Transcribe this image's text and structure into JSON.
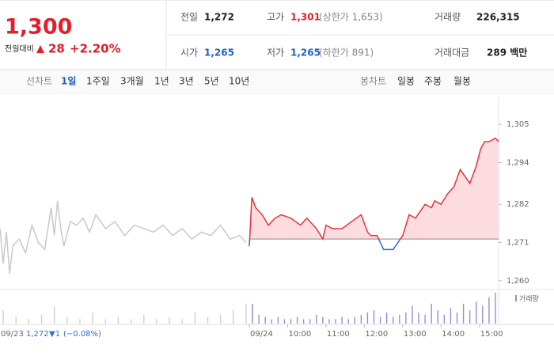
{
  "header": {
    "price": "1,300",
    "change_label": "전일대비",
    "change_arrow": "▲",
    "change": "28",
    "change_pct": "+2.20%",
    "stats": [
      {
        "label": "전일",
        "value": "1,272"
      },
      {
        "label": "고가",
        "value": "1,301",
        "note": "(상한가 1,653)"
      },
      {
        "label": "거래량",
        "value": "226,315"
      },
      {
        "label": "시가",
        "value": "1,265"
      },
      {
        "label": "저가",
        "value": "1,265",
        "note": "(하한가 891)"
      },
      {
        "label": "거래대금",
        "value": "289 백만"
      }
    ]
  },
  "tabs": {
    "line_label": "선차트",
    "line_periods": [
      "1일",
      "1주일",
      "3개월",
      "1년",
      "3년",
      "5년",
      "10년"
    ],
    "candle_label": "봉차트",
    "candle_periods": [
      "일봉",
      "주봉",
      "월봉"
    ]
  },
  "chart_data": {
    "type": "line",
    "xlim": [
      -390,
      390
    ],
    "ylim": [
      1257.7,
      1313
    ],
    "xticks": [
      {
        "value": 0,
        "label": "09/24"
      },
      {
        "value": 60,
        "label": "10:00"
      },
      {
        "value": 120,
        "label": "11:00"
      },
      {
        "value": 180,
        "label": "12:00"
      },
      {
        "value": 240,
        "label": "13:00"
      },
      {
        "value": 300,
        "label": "14:00"
      },
      {
        "value": 360,
        "label": "15:00"
      }
    ],
    "yticks": [
      {
        "value": 1305,
        "label": "1,305"
      },
      {
        "value": 1294,
        "label": "1,294"
      },
      {
        "value": 1282,
        "label": "1,282"
      },
      {
        "value": 1271,
        "label": "1,271"
      },
      {
        "value": 1260,
        "label": "1,260"
      }
    ],
    "baseline": 1272,
    "up_color": "#e8323a",
    "down_color": "#2f6fd6",
    "fill_color": "#fcdcdf",
    "series": [
      {
        "color": "#c9c9c9",
        "x": [
          -390,
          -385,
          -380,
          -375,
          -370,
          -360,
          -350,
          -340,
          -330,
          -320,
          -310,
          -305,
          -300,
          -295,
          -290,
          -280,
          -270,
          -260,
          -250,
          -240,
          -225,
          -210,
          -195,
          -180,
          -165,
          -150,
          -135,
          -120,
          -105,
          -90,
          -75,
          -60,
          -45,
          -30,
          -15,
          -5
        ],
        "values": [
          1275,
          1265,
          1274,
          1262,
          1270,
          1272,
          1268,
          1276,
          1271,
          1269,
          1281,
          1273,
          1283,
          1275,
          1270,
          1277,
          1276,
          1278,
          1274,
          1279,
          1275,
          1277,
          1273,
          1276,
          1275,
          1274,
          1276,
          1273,
          1275,
          1272,
          1274,
          1273,
          1276,
          1272,
          1273,
          1271
        ]
      },
      {
        "x": [
          0,
          4,
          10,
          20,
          30,
          40,
          50,
          65,
          80,
          90,
          105,
          115,
          120,
          130,
          145,
          160,
          175,
          185,
          190,
          200,
          210,
          225,
          240,
          250,
          260,
          275,
          285,
          290,
          300,
          310,
          320,
          330,
          345,
          355,
          362,
          368,
          375,
          385,
          390
        ],
        "values": [
          1270,
          1284,
          1281,
          1279,
          1276,
          1278,
          1279,
          1278,
          1276,
          1278,
          1275,
          1272,
          1276,
          1275,
          1275,
          1277,
          1279,
          1274,
          1273,
          1273,
          1269,
          1269,
          1273,
          1279,
          1278,
          1282,
          1281,
          1283,
          1282,
          1285,
          1287,
          1292,
          1288,
          1293,
          1298,
          1300,
          1300,
          1301,
          1300
        ]
      }
    ],
    "volume": {
      "name": "거래량",
      "series": [
        {
          "color": "#cfcfcf",
          "x": [
            -385,
            -365,
            -345,
            -325,
            -305,
            -285,
            -265,
            -245,
            -225,
            -205,
            -185,
            -165,
            -145,
            -125,
            -105,
            -85,
            -65,
            -45,
            -25,
            -5
          ],
          "values": [
            6,
            3,
            2,
            4,
            8,
            3,
            2,
            5,
            2,
            3,
            2,
            4,
            2,
            3,
            2,
            5,
            3,
            4,
            6,
            9
          ]
        },
        {
          "color": "#9b8bd4",
          "x": [
            5,
            15,
            25,
            35,
            45,
            55,
            65,
            75,
            85,
            95,
            105,
            115,
            125,
            135,
            145,
            155,
            165,
            175,
            185,
            195,
            205,
            215,
            225,
            235,
            245,
            255,
            265,
            275,
            285,
            295,
            305,
            315,
            325,
            335,
            345,
            355,
            365,
            375,
            385
          ],
          "values": [
            9,
            4,
            3,
            2,
            3,
            2,
            2,
            3,
            2,
            2,
            4,
            3,
            2,
            2,
            3,
            2,
            3,
            4,
            5,
            6,
            3,
            5,
            3,
            4,
            5,
            8,
            5,
            4,
            9,
            6,
            4,
            7,
            5,
            9,
            6,
            10,
            8,
            12,
            14
          ]
        }
      ]
    },
    "prev_day": {
      "date": "09/23",
      "close": "1,272",
      "change": "▼1",
      "change_pct": "(−0.08%)"
    }
  }
}
